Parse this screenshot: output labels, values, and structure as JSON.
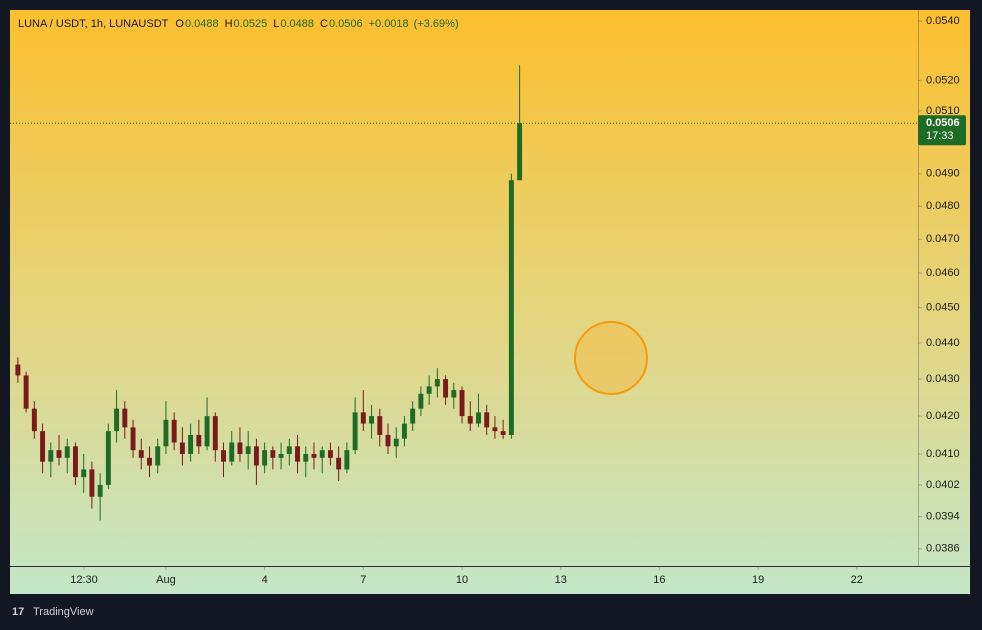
{
  "header": {
    "symbol": "LUNA / USDT, 1h, LUNAUSDT",
    "ohlc": [
      {
        "key": "O",
        "value": "0.0488"
      },
      {
        "key": "H",
        "value": "0.0525"
      },
      {
        "key": "L",
        "value": "0.0488"
      },
      {
        "key": "C",
        "value": "0.0506"
      }
    ],
    "change": "+0.0018",
    "change_pct": "(+3.69%)"
  },
  "chart_data": {
    "type": "candlestick",
    "log_scale": true,
    "up_color": "#1e6b25",
    "down_color": "#7a1a1a",
    "x": [
      -4.5,
      -4.25,
      -4,
      -3.75,
      -3.5,
      -3.25,
      -3,
      -2.75,
      -2.5,
      -2.25,
      -2,
      -1.75,
      -1.5,
      -1.25,
      -1,
      -0.75,
      -0.5,
      -0.25,
      0,
      0.25,
      0.5,
      0.75,
      1,
      1.25,
      1.5,
      1.75,
      2,
      2.25,
      2.5,
      2.75,
      3,
      3.25,
      3.5,
      3.75,
      4,
      4.25,
      4.5,
      4.75,
      5,
      5.25,
      5.5,
      5.75,
      6,
      6.25,
      6.5,
      6.75,
      7,
      7.25,
      7.5,
      7.75,
      8,
      8.25,
      8.5,
      8.75,
      9,
      9.25,
      9.5,
      9.75,
      10,
      10.25,
      10.5,
      10.75
    ],
    "open": [
      0.0434,
      0.0431,
      0.0422,
      0.0416,
      0.0408,
      0.0411,
      0.0409,
      0.0412,
      0.0404,
      0.0406,
      0.0399,
      0.0402,
      0.0416,
      0.0422,
      0.0417,
      0.0411,
      0.0409,
      0.0407,
      0.0412,
      0.0419,
      0.0413,
      0.041,
      0.0415,
      0.0412,
      0.042,
      0.0411,
      0.0408,
      0.0413,
      0.041,
      0.0412,
      0.0407,
      0.0411,
      0.0409,
      0.041,
      0.0412,
      0.0408,
      0.041,
      0.0409,
      0.0411,
      0.0409,
      0.0406,
      0.0411,
      0.0421,
      0.0418,
      0.042,
      0.0415,
      0.0412,
      0.0414,
      0.0418,
      0.0422,
      0.0426,
      0.0428,
      0.043,
      0.0425,
      0.0427,
      0.042,
      0.0418,
      0.0421,
      0.0417,
      0.0416,
      0.0415,
      0.0488
    ],
    "high": [
      0.0436,
      0.0432,
      0.0424,
      0.0418,
      0.0413,
      0.0415,
      0.0414,
      0.0413,
      0.041,
      0.0408,
      0.0405,
      0.0418,
      0.0427,
      0.0424,
      0.0419,
      0.0414,
      0.0412,
      0.0414,
      0.0424,
      0.0421,
      0.0417,
      0.0418,
      0.0419,
      0.0425,
      0.0421,
      0.0413,
      0.0416,
      0.0417,
      0.0416,
      0.0414,
      0.0413,
      0.0412,
      0.0413,
      0.0414,
      0.0415,
      0.0412,
      0.0413,
      0.0412,
      0.0413,
      0.0412,
      0.0413,
      0.0425,
      0.0427,
      0.0423,
      0.0422,
      0.0418,
      0.0417,
      0.042,
      0.0424,
      0.0428,
      0.0431,
      0.0433,
      0.0431,
      0.0429,
      0.0428,
      0.0424,
      0.0426,
      0.0423,
      0.042,
      0.0419,
      0.049,
      0.0525
    ],
    "low": [
      0.0429,
      0.0421,
      0.0414,
      0.0405,
      0.0404,
      0.0407,
      0.0405,
      0.0402,
      0.04,
      0.0396,
      0.0393,
      0.0401,
      0.0413,
      0.0414,
      0.0409,
      0.0406,
      0.0404,
      0.0405,
      0.041,
      0.0411,
      0.0407,
      0.0408,
      0.041,
      0.0411,
      0.0408,
      0.0404,
      0.0407,
      0.0408,
      0.0406,
      0.0402,
      0.0405,
      0.0406,
      0.0406,
      0.0407,
      0.0405,
      0.0404,
      0.0406,
      0.0405,
      0.0407,
      0.0403,
      0.0405,
      0.041,
      0.0416,
      0.0414,
      0.0412,
      0.041,
      0.0409,
      0.0412,
      0.0416,
      0.042,
      0.0423,
      0.0425,
      0.0423,
      0.0422,
      0.0418,
      0.0416,
      0.0417,
      0.0415,
      0.0414,
      0.0414,
      0.0414,
      0.0488
    ],
    "close": [
      0.0431,
      0.0422,
      0.0416,
      0.0408,
      0.0411,
      0.0409,
      0.0412,
      0.0404,
      0.0406,
      0.0399,
      0.0402,
      0.0416,
      0.0422,
      0.0417,
      0.0411,
      0.0409,
      0.0407,
      0.0412,
      0.0419,
      0.0413,
      0.041,
      0.0415,
      0.0412,
      0.042,
      0.0411,
      0.0408,
      0.0413,
      0.041,
      0.0412,
      0.0407,
      0.0411,
      0.0409,
      0.041,
      0.0412,
      0.0408,
      0.041,
      0.0409,
      0.0411,
      0.0409,
      0.0406,
      0.0411,
      0.0421,
      0.0418,
      0.042,
      0.0415,
      0.0412,
      0.0414,
      0.0418,
      0.0422,
      0.0426,
      0.0428,
      0.043,
      0.0425,
      0.0427,
      0.042,
      0.0418,
      0.0421,
      0.0417,
      0.0416,
      0.0415,
      0.0488,
      0.0506
    ],
    "xlim": [
      -4.74,
      22.86
    ],
    "xticks": [
      {
        "value": -2.49,
        "label": "12:30"
      },
      {
        "value": 0,
        "label": "Aug"
      },
      {
        "value": 3,
        "label": "4"
      },
      {
        "value": 6,
        "label": "7"
      },
      {
        "value": 9,
        "label": "10"
      },
      {
        "value": 12,
        "label": "13"
      },
      {
        "value": 15,
        "label": "16"
      },
      {
        "value": 18,
        "label": "19"
      },
      {
        "value": 21,
        "label": "22"
      }
    ],
    "ylim": [
      0.03818,
      0.05438
    ],
    "yticks": [
      {
        "value": 0.054,
        "label": "0.0540"
      },
      {
        "value": 0.052,
        "label": "0.0520"
      },
      {
        "value": 0.051,
        "label": "0.0510"
      },
      {
        "value": 0.049,
        "label": "0.0490"
      },
      {
        "value": 0.048,
        "label": "0.0480"
      },
      {
        "value": 0.047,
        "label": "0.0470"
      },
      {
        "value": 0.046,
        "label": "0.0460"
      },
      {
        "value": 0.045,
        "label": "0.0450"
      },
      {
        "value": 0.044,
        "label": "0.0440"
      },
      {
        "value": 0.043,
        "label": "0.0430"
      },
      {
        "value": 0.042,
        "label": "0.0420"
      },
      {
        "value": 0.041,
        "label": "0.0410"
      },
      {
        "value": 0.0402,
        "label": "0.0402"
      },
      {
        "value": 0.0394,
        "label": "0.0394"
      },
      {
        "value": 0.0386,
        "label": "0.0386"
      }
    ],
    "last_price": {
      "value": 0.0506,
      "label": "0.0506",
      "countdown": "17:33",
      "color": "#1e6b25"
    }
  },
  "footer": {
    "brand": "TradingView"
  }
}
